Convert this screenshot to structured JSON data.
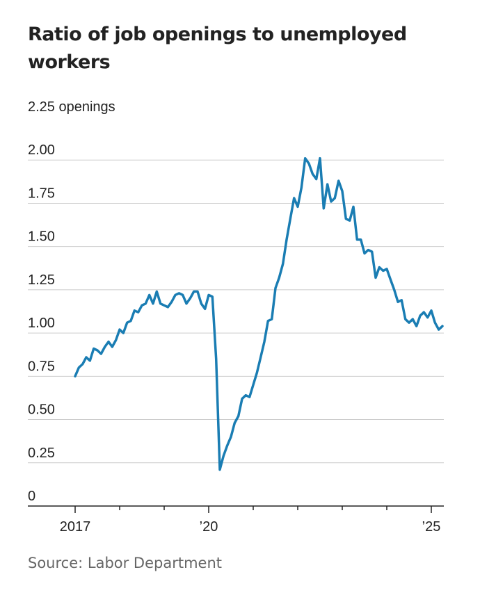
{
  "title": "Ratio of job openings to unemployed workers",
  "source": "Source: Labor Department",
  "colors": {
    "line": "#1a7db3",
    "grid": "#cccccc",
    "axis": "#222222"
  },
  "chart_data": {
    "type": "line",
    "title": "Ratio of job openings to unemployed workers",
    "ylabel": "",
    "y_unit_label": "openings",
    "ylim": [
      0,
      2.25
    ],
    "yticks": [
      0,
      0.25,
      0.5,
      0.75,
      1.0,
      1.25,
      1.5,
      1.75,
      2.0,
      2.25
    ],
    "ytick_labels": [
      "0",
      "0.25",
      "0.50",
      "0.75",
      "1.00",
      "1.25",
      "1.50",
      "1.75",
      "2.00",
      "2.25 openings"
    ],
    "xlim": [
      "2017-01",
      "2025-04"
    ],
    "xtick_labels": [
      {
        "x": "2017-01",
        "label": "2017"
      },
      {
        "x": "2020-01",
        "label": "’20"
      },
      {
        "x": "2025-01",
        "label": "’25"
      }
    ],
    "grid": true,
    "series": [
      {
        "x": [
          "2017-01",
          "2017-02",
          "2017-03",
          "2017-04",
          "2017-05",
          "2017-06",
          "2017-07",
          "2017-08",
          "2017-09",
          "2017-10",
          "2017-11",
          "2017-12",
          "2018-01",
          "2018-02",
          "2018-03",
          "2018-04",
          "2018-05",
          "2018-06",
          "2018-07",
          "2018-08",
          "2018-09",
          "2018-10",
          "2018-11",
          "2018-12",
          "2019-01",
          "2019-02",
          "2019-03",
          "2019-04",
          "2019-05",
          "2019-06",
          "2019-07",
          "2019-08",
          "2019-09",
          "2019-10",
          "2019-11",
          "2019-12",
          "2020-01",
          "2020-02",
          "2020-03",
          "2020-04",
          "2020-05",
          "2020-06",
          "2020-07",
          "2020-08",
          "2020-09",
          "2020-10",
          "2020-11",
          "2020-12",
          "2021-01",
          "2021-02",
          "2021-03",
          "2021-04",
          "2021-05",
          "2021-06",
          "2021-07",
          "2021-08",
          "2021-09",
          "2021-10",
          "2021-11",
          "2021-12",
          "2022-01",
          "2022-02",
          "2022-03",
          "2022-04",
          "2022-05",
          "2022-06",
          "2022-07",
          "2022-08",
          "2022-09",
          "2022-10",
          "2022-11",
          "2022-12",
          "2023-01",
          "2023-02",
          "2023-03",
          "2023-04",
          "2023-05",
          "2023-06",
          "2023-07",
          "2023-08",
          "2023-09",
          "2023-10",
          "2023-11",
          "2023-12",
          "2024-01",
          "2024-02",
          "2024-03",
          "2024-04",
          "2024-05",
          "2024-06",
          "2024-07",
          "2024-08",
          "2024-09",
          "2024-10",
          "2024-11",
          "2024-12",
          "2025-01",
          "2025-02",
          "2025-03",
          "2025-04"
        ],
        "values": [
          0.75,
          0.8,
          0.82,
          0.86,
          0.84,
          0.91,
          0.9,
          0.88,
          0.92,
          0.95,
          0.92,
          0.96,
          1.02,
          1.0,
          1.06,
          1.07,
          1.13,
          1.12,
          1.16,
          1.17,
          1.22,
          1.17,
          1.24,
          1.17,
          1.16,
          1.15,
          1.18,
          1.22,
          1.23,
          1.22,
          1.17,
          1.2,
          1.24,
          1.24,
          1.17,
          1.14,
          1.22,
          1.21,
          0.85,
          0.21,
          0.29,
          0.35,
          0.4,
          0.48,
          0.52,
          0.62,
          0.64,
          0.63,
          0.7,
          0.77,
          0.86,
          0.95,
          1.07,
          1.08,
          1.26,
          1.32,
          1.4,
          1.54,
          1.66,
          1.78,
          1.73,
          1.84,
          2.01,
          1.98,
          1.92,
          1.89,
          2.01,
          1.72,
          1.86,
          1.76,
          1.78,
          1.88,
          1.82,
          1.66,
          1.65,
          1.73,
          1.54,
          1.54,
          1.46,
          1.48,
          1.47,
          1.32,
          1.38,
          1.36,
          1.37,
          1.31,
          1.25,
          1.18,
          1.19,
          1.08,
          1.06,
          1.08,
          1.04,
          1.1,
          1.12,
          1.09,
          1.13,
          1.06,
          1.02,
          1.04
        ]
      }
    ]
  }
}
